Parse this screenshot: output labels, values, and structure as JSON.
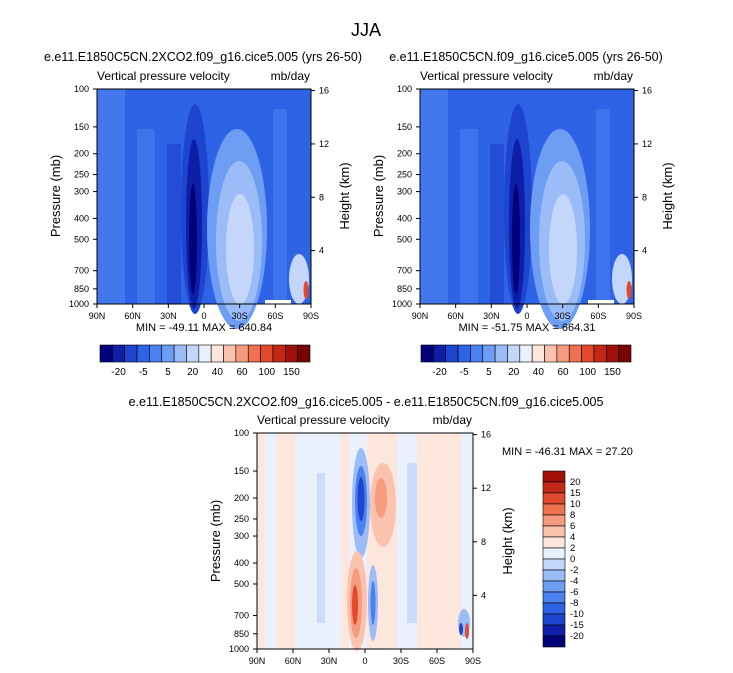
{
  "figure": {
    "title": "JJA"
  },
  "palettes": {
    "full": [
      "#00007a",
      "#0d1fa8",
      "#1d45d0",
      "#2f63e6",
      "#4a80ef",
      "#6d9ef3",
      "#9bbcf7",
      "#c4d7fa",
      "#eaf1fd",
      "#fde6dc",
      "#fbc2ae",
      "#f79b80",
      "#f0714f",
      "#e24a2d",
      "#c42717",
      "#a11009",
      "#780303"
    ],
    "diff": [
      "#00007a",
      "#0d1fa8",
      "#1d45d0",
      "#2f63e6",
      "#4a80ef",
      "#6d9ef3",
      "#9bbcf7",
      "#c4d7fa",
      "#eaf1fd",
      "#fde6dc",
      "#fbc2ae",
      "#f79b80",
      "#f0714f",
      "#e24a2d",
      "#c42717",
      "#a11009"
    ]
  },
  "chart_data": [
    {
      "type": "heatmap",
      "title": "e.e11.E1850C5CN.2XCO2.f09_g16.cice5.005 (yrs 26-50)",
      "subtitle_left": "Vertical pressure velocity",
      "subtitle_right": "mb/day",
      "ylabel": "Pressure (mb)",
      "ylabel_right": "Height (km)",
      "xticks": [
        "90N",
        "60N",
        "30N",
        "0",
        "30S",
        "60S",
        "90S"
      ],
      "yticks": [
        "100",
        "150",
        "200",
        "250",
        "300",
        "400",
        "500",
        "700",
        "850",
        "1000"
      ],
      "height_ticks": [
        "16",
        "12",
        "8",
        "4"
      ],
      "stats": "MIN = -49.11   MAX = 640.84",
      "colorbar": {
        "labels": [
          "-20",
          "-5",
          "5",
          "20",
          "40",
          "60",
          "100",
          "150"
        ],
        "orientation": "horizontal"
      },
      "ylim": [
        1000,
        100
      ],
      "xlim": [
        "90N",
        "90S"
      ],
      "grid": false
    },
    {
      "type": "heatmap",
      "title": "e.e11.E1850C5CN.f09_g16.cice5.005 (yrs 26-50)",
      "subtitle_left": "Vertical pressure velocity",
      "subtitle_right": "mb/day",
      "ylabel": "Pressure (mb)",
      "ylabel_right": "Height (km)",
      "xticks": [
        "90N",
        "60N",
        "30N",
        "0",
        "30S",
        "60S",
        "90S"
      ],
      "yticks": [
        "100",
        "150",
        "200",
        "250",
        "300",
        "400",
        "500",
        "700",
        "850",
        "1000"
      ],
      "height_ticks": [
        "16",
        "12",
        "8",
        "4"
      ],
      "stats": "MIN = -51.75   MAX = 664.31",
      "colorbar": {
        "labels": [
          "-20",
          "-5",
          "5",
          "20",
          "40",
          "60",
          "100",
          "150"
        ],
        "orientation": "horizontal"
      },
      "ylim": [
        1000,
        100
      ],
      "xlim": [
        "90N",
        "90S"
      ],
      "grid": false
    },
    {
      "type": "heatmap",
      "title": "e.e11.E1850C5CN.2XCO2.f09_g16.cice5.005 - e.e11.E1850C5CN.f09_g16.cice5.005",
      "subtitle_left": "Vertical pressure velocity",
      "subtitle_right": "mb/day",
      "ylabel": "Pressure (mb)",
      "ylabel_right": "Height (km)",
      "xticks": [
        "90N",
        "60N",
        "30N",
        "0",
        "30S",
        "60S",
        "90S"
      ],
      "yticks": [
        "100",
        "150",
        "200",
        "250",
        "300",
        "400",
        "500",
        "700",
        "850",
        "1000"
      ],
      "height_ticks": [
        "16",
        "12",
        "8",
        "4"
      ],
      "stats": "MIN = -46.31   MAX =  27.20",
      "colorbar": {
        "labels": [
          "20",
          "15",
          "10",
          "8",
          "6",
          "4",
          "2",
          "0",
          "-2",
          "-4",
          "-6",
          "-8",
          "-10",
          "-15",
          "-20"
        ],
        "orientation": "vertical"
      },
      "ylim": [
        1000,
        100
      ],
      "xlim": [
        "90N",
        "90S"
      ],
      "grid": false
    }
  ]
}
